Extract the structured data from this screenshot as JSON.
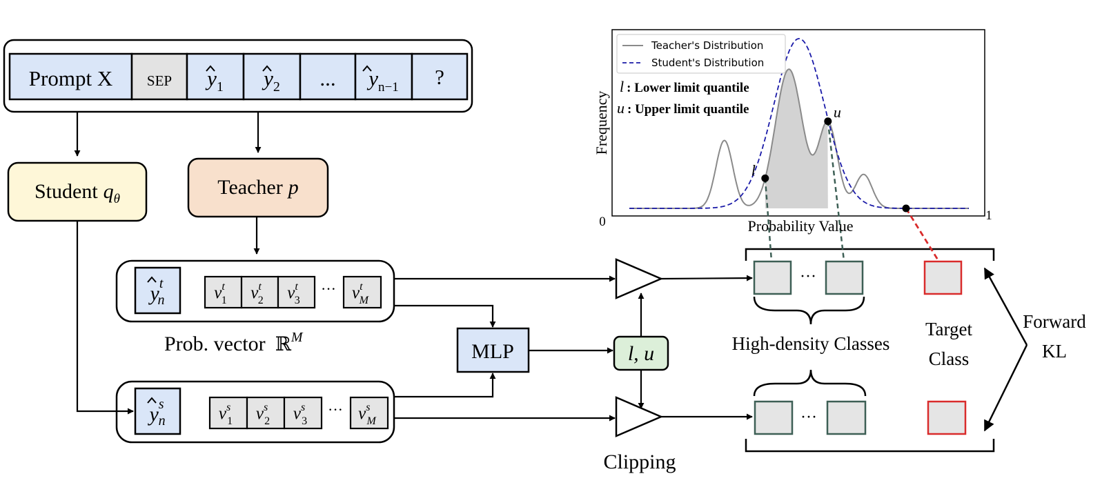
{
  "token_sequence": {
    "tokens": [
      {
        "base": "Prompt X",
        "sup": "",
        "sub": "",
        "hat": false,
        "style": "text"
      },
      {
        "base": "SEP",
        "sup": "",
        "sub": "",
        "hat": false,
        "style": "sep"
      },
      {
        "base": "y",
        "sup": "",
        "sub": "1",
        "hat": true,
        "style": "math"
      },
      {
        "base": "y",
        "sup": "",
        "sub": "2",
        "hat": true,
        "style": "math"
      },
      {
        "base": "...",
        "sup": "",
        "sub": "",
        "hat": false,
        "style": "text"
      },
      {
        "base": "y",
        "sup": "",
        "sub": "n−1",
        "hat": true,
        "style": "math"
      },
      {
        "base": "?",
        "sup": "",
        "sub": "",
        "hat": false,
        "style": "text"
      }
    ],
    "colors": {
      "token_fill": "#dae6f8",
      "sep_fill": "#e3e3e3"
    }
  },
  "student": {
    "label": "Student",
    "param": "q",
    "param_sub": "θ",
    "fill": "#fef7d8"
  },
  "teacher": {
    "label": "Teacher",
    "param": "p",
    "fill": "#f8e0cc"
  },
  "teacher_vector": {
    "token": {
      "base": "y",
      "sup": "t",
      "sub": "n"
    },
    "entries": [
      {
        "base": "v",
        "sup": "t",
        "sub": "1"
      },
      {
        "base": "v",
        "sup": "t",
        "sub": "2"
      },
      {
        "base": "v",
        "sup": "t",
        "sub": "3"
      }
    ],
    "ellipsis": "···",
    "last": {
      "base": "v",
      "sup": "t",
      "sub": "M"
    }
  },
  "student_vector": {
    "token": {
      "base": "y",
      "sup": "s",
      "sub": "n"
    },
    "entries": [
      {
        "base": "v",
        "sup": "s",
        "sub": "1"
      },
      {
        "base": "v",
        "sup": "s",
        "sub": "2"
      },
      {
        "base": "v",
        "sup": "s",
        "sub": "3"
      }
    ],
    "ellipsis": "···",
    "last": {
      "base": "v",
      "sup": "s",
      "sub": "M"
    }
  },
  "prob_vector_label": {
    "text": "Prob. vector",
    "space": "ℝ",
    "sup": "M"
  },
  "mlp": {
    "label": "MLP",
    "fill": "#dae6f8"
  },
  "limits_box": {
    "label": "l, u",
    "fill": "#dcefd9"
  },
  "clipping_label": "Clipping",
  "high_density_label": "High-density Classes",
  "target_class_label": [
    "Target",
    "Class"
  ],
  "forward_kl_label": [
    "Forward",
    "KL"
  ],
  "class_ellipsis": "···",
  "colors": {
    "green_edge": "#3d5f55",
    "red_edge": "#d92b2b",
    "class_fill": "#e5e5e5",
    "student_curve": "#1a1aa8",
    "teacher_curve": "#8a8a8a",
    "shade": "#d3d3d3"
  },
  "chart_data": {
    "type": "line",
    "title": "",
    "xlabel": "Probability Value",
    "ylabel": "Frequency",
    "xlim": [
      0,
      1
    ],
    "x_tick_labels": [
      "0",
      "1"
    ],
    "legend": {
      "position": "top-left",
      "entries": [
        "Teacher's Distribution",
        "Student's Distribution"
      ]
    },
    "annotations": [
      {
        "symbol": "l",
        "text": ": Lower limit quantile"
      },
      {
        "symbol": "u",
        "text": ": Upper limit quantile"
      }
    ],
    "series": [
      {
        "name": "Teacher's Distribution",
        "style": "solid",
        "components": [
          {
            "mu": 0.28,
            "sigma": 0.025,
            "amp": 0.4
          },
          {
            "mu": 0.47,
            "sigma": 0.04,
            "amp": 0.82
          },
          {
            "mu": 0.585,
            "sigma": 0.028,
            "amp": 0.5
          },
          {
            "mu": 0.69,
            "sigma": 0.025,
            "amp": 0.2
          }
        ]
      },
      {
        "name": "Student's Distribution",
        "style": "dashed",
        "components": [
          {
            "mu": 0.5,
            "sigma": 0.075,
            "amp": 1.0
          }
        ]
      }
    ],
    "quantiles": {
      "l": 0.4,
      "u": 0.585
    },
    "target_point": 0.815
  }
}
